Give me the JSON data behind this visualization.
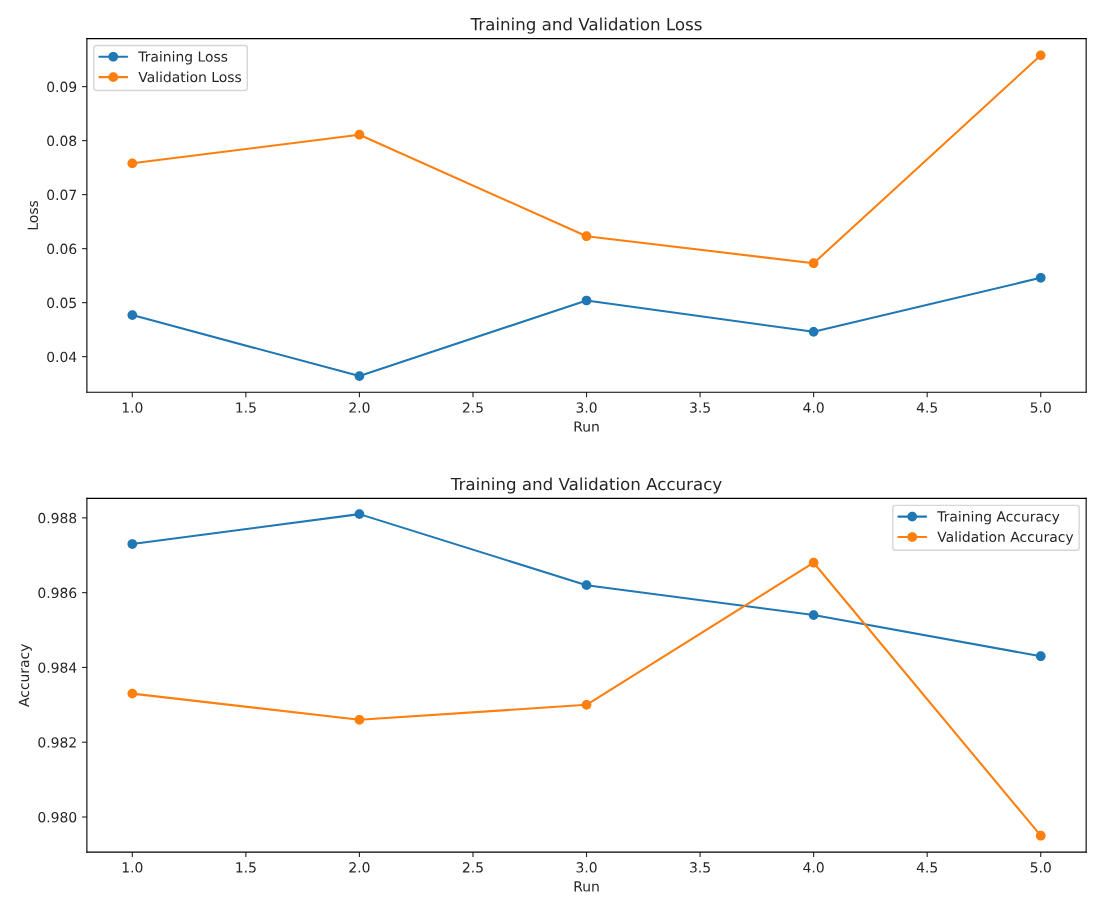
{
  "chart_data": [
    {
      "type": "line",
      "title": "Training and Validation Loss",
      "xlabel": "Run",
      "ylabel": "Loss",
      "x": [
        1,
        2,
        3,
        4,
        5
      ],
      "series": [
        {
          "name": "Training Loss",
          "color": "#1f77b4",
          "values": [
            0.0477,
            0.0364,
            0.0504,
            0.0446,
            0.0546
          ]
        },
        {
          "name": "Validation Loss",
          "color": "#ff7f0e",
          "values": [
            0.0758,
            0.0811,
            0.0623,
            0.0573,
            0.0958
          ]
        }
      ],
      "xlim": [
        0.8,
        5.2
      ],
      "xticks": [
        {
          "value": 1,
          "label": "1.0"
        },
        {
          "value": 1.5,
          "label": "1.5"
        },
        {
          "value": 2,
          "label": "2.0"
        },
        {
          "value": 2.5,
          "label": "2.5"
        },
        {
          "value": 3,
          "label": "3.0"
        },
        {
          "value": 3.5,
          "label": "3.5"
        },
        {
          "value": 4,
          "label": "4.0"
        },
        {
          "value": 4.5,
          "label": "4.5"
        },
        {
          "value": 5,
          "label": "5.0"
        }
      ],
      "ylim": [
        0.0334,
        0.0989
      ],
      "yticks": [
        0.04,
        0.05,
        0.06,
        0.07,
        0.08,
        0.09
      ],
      "marker": "circle",
      "line_style": "solid",
      "grid": false,
      "legend": "top left"
    },
    {
      "type": "line",
      "title": "Training and Validation Accuracy",
      "xlabel": "Run",
      "ylabel": "Accuracy",
      "x": [
        1,
        2,
        3,
        4,
        5
      ],
      "series": [
        {
          "name": "Training Accuracy",
          "color": "#1f77b4",
          "values": [
            0.9873,
            0.9881,
            0.9862,
            0.9854,
            0.9843
          ]
        },
        {
          "name": "Validation Accuracy",
          "color": "#ff7f0e",
          "values": [
            0.9833,
            0.9826,
            0.983,
            0.9868,
            0.9795
          ]
        }
      ],
      "xlim": [
        0.8,
        5.2
      ],
      "xticks": [
        {
          "value": 1,
          "label": "1.0"
        },
        {
          "value": 1.5,
          "label": "1.5"
        },
        {
          "value": 2,
          "label": "2.0"
        },
        {
          "value": 2.5,
          "label": "2.5"
        },
        {
          "value": 3,
          "label": "3.0"
        },
        {
          "value": 3.5,
          "label": "3.5"
        },
        {
          "value": 4,
          "label": "4.0"
        },
        {
          "value": 4.5,
          "label": "4.5"
        },
        {
          "value": 5,
          "label": "5.0"
        }
      ],
      "ylim": [
        0.97906,
        0.98852
      ],
      "yticks": [
        {
          "value": 0.98,
          "label": "0.980"
        },
        {
          "value": 0.982,
          "label": "0.982"
        },
        {
          "value": 0.984,
          "label": "0.984"
        },
        {
          "value": 0.986,
          "label": "0.986"
        },
        {
          "value": 0.988,
          "label": "0.988"
        }
      ],
      "marker": "circle",
      "line_style": "solid",
      "grid": false,
      "legend": "top right"
    }
  ]
}
